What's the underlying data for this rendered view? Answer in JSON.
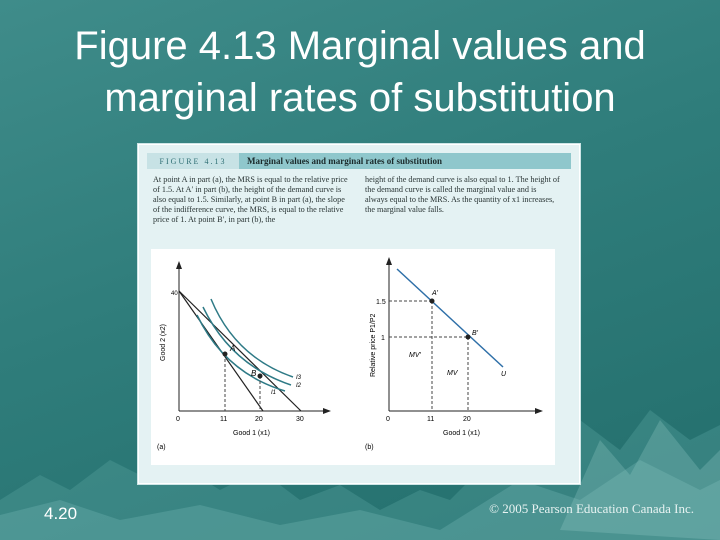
{
  "slide": {
    "title": "Figure 4.13 Marginal values and marginal rates of substitution",
    "number": "4.20",
    "copyright": "© 2005 Pearson Education Canada Inc."
  },
  "figure": {
    "label": "FIGURE 4.13",
    "caption": "Marginal values and marginal rates of substitution",
    "text_left": "At point A in part (a), the MRS is equal to the relative price of 1.5. At A′ in part (b), the height of the demand curve is also equal to 1.5. Similarly, at point B in part (a), the slope of the indifference curve, the MRS, is equal to the relative price of 1. At point B′, in part (b), the",
    "text_right": "height of the demand curve is also equal to 1. The height of the demand curve is called the marginal value and is always equal to the MRS. As the quantity of x1 increases, the marginal value falls.",
    "panel_a": {
      "tag": "(a)",
      "xlabel": "Good 1 (x1)",
      "ylabel": "Good 2 (x2)",
      "x_ticks": [
        "0",
        "11",
        "20",
        "30"
      ],
      "y_ticks": [
        "40"
      ],
      "point_a": "A",
      "point_b": "B",
      "curve_labels": [
        "I3",
        "I2",
        "I1"
      ]
    },
    "panel_b": {
      "tag": "(b)",
      "xlabel": "Good 1 (x1)",
      "ylabel": "Relative price P1/P2",
      "x_ticks": [
        "0",
        "11",
        "20"
      ],
      "y_ticks": [
        "1.5",
        "1"
      ],
      "point_a": "A′",
      "point_b": "B′",
      "mv_a": "MV′",
      "mv_b": "MV",
      "curve_label": "U"
    }
  }
}
